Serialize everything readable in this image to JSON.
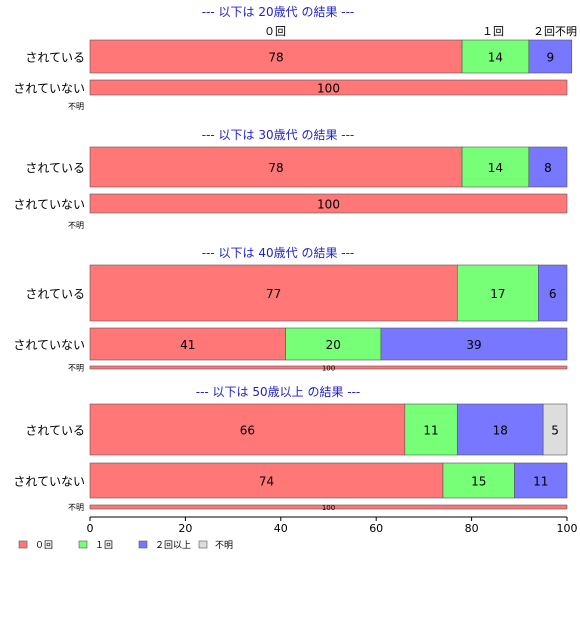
{
  "chart_data": {
    "type": "bar",
    "orientation": "horizontal",
    "stacked": true,
    "percent": true,
    "xlim": [
      0,
      100
    ],
    "xticks": [
      0,
      20,
      40,
      60,
      80,
      100
    ],
    "grid": false,
    "legend_position": "bottom-left",
    "legend": [
      "０回",
      "１回",
      "２回以上",
      "不明"
    ],
    "colors": [
      "#ff7777",
      "#77ff77",
      "#7777ff",
      "#dddddd"
    ],
    "top_column_labels": [
      "０回",
      "１回",
      "２回不明"
    ],
    "groups": [
      {
        "title": "--- 以下は 20歳代 の結果 ---",
        "rows": [
          {
            "label": "されている",
            "values": [
              78,
              14,
              9,
              0
            ]
          },
          {
            "label": "されていない",
            "values": [
              100,
              0,
              0,
              0
            ]
          },
          {
            "label": "不明",
            "values": [
              0,
              0,
              0,
              0
            ]
          }
        ]
      },
      {
        "title": "--- 以下は 30歳代 の結果 ---",
        "rows": [
          {
            "label": "されている",
            "values": [
              78,
              14,
              8,
              0
            ]
          },
          {
            "label": "されていない",
            "values": [
              100,
              0,
              0,
              0
            ]
          },
          {
            "label": "不明",
            "values": [
              0,
              0,
              0,
              0
            ]
          }
        ]
      },
      {
        "title": "--- 以下は 40歳代 の結果 ---",
        "rows": [
          {
            "label": "されている",
            "values": [
              77,
              17,
              6,
              0
            ]
          },
          {
            "label": "されていない",
            "values": [
              41,
              20,
              39,
              0
            ]
          },
          {
            "label": "不明",
            "values": [
              100,
              0,
              0,
              0
            ]
          }
        ]
      },
      {
        "title": "--- 以下は 50歳以上 の結果 ---",
        "rows": [
          {
            "label": "されている",
            "values": [
              66,
              11,
              18,
              5
            ]
          },
          {
            "label": "されていない",
            "values": [
              74,
              15,
              11,
              0
            ]
          },
          {
            "label": "不明",
            "values": [
              100,
              0,
              0,
              0
            ]
          }
        ]
      }
    ]
  }
}
